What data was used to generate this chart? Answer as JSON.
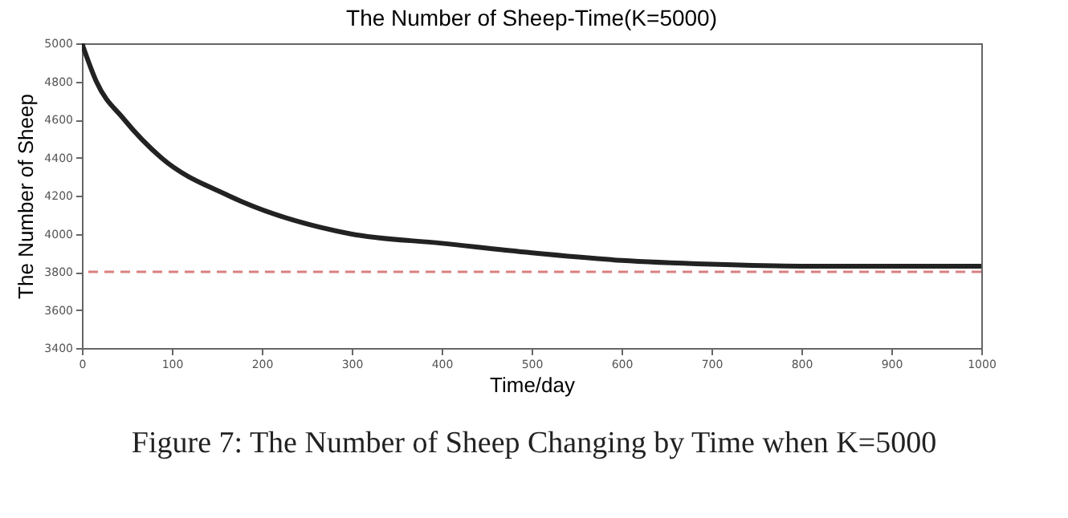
{
  "chart_data": {
    "type": "line",
    "title": "The Number of Sheep-Time(K=5000)",
    "xlabel": "Time/day",
    "ylabel": "The Number of Sheep",
    "x": [
      0,
      16,
      47,
      88,
      163,
      298,
      400,
      500,
      600,
      700,
      800,
      900,
      1000
    ],
    "series": [
      {
        "color": "#222222",
        "values": [
          5000,
          4800,
          4600,
          4400,
          4200,
          4000,
          3950,
          3900,
          3860,
          3840,
          3830,
          3830,
          3830
        ]
      }
    ],
    "xlim": [
      0,
      1000
    ],
    "xticks": [
      0,
      100,
      200,
      300,
      400,
      500,
      600,
      700,
      800,
      900,
      1000
    ],
    "ylim": [
      3400,
      5000
    ],
    "yticks": [
      3400,
      3600,
      3800,
      4000,
      4200,
      4400,
      4600,
      4800,
      5000
    ],
    "ref_lines": [
      {
        "axis": "y",
        "value": 3800,
        "color": "#d98080",
        "line_style": "dashed"
      }
    ],
    "line_style": "solid",
    "marker": "none",
    "annotations": [
      "Figure 7: The Number of Sheep Changing by Time when K=5000"
    ]
  }
}
